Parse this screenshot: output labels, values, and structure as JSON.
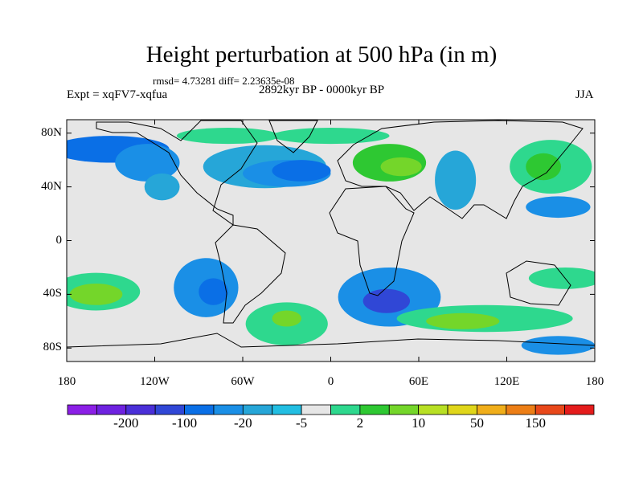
{
  "title": "Height perturbation at 500 hPa (in m)",
  "stats": "rmsd= 4.73281 diff= 2.23635e-08",
  "experiment": "Expt = xqFV7-xqfua",
  "period": "2892kyr BP - 0000kyr BP",
  "season": "JJA",
  "map": {
    "lat_range": [
      -90,
      90
    ],
    "lon_range": [
      -180,
      180
    ],
    "lat_ticks": [
      {
        "value": 80,
        "label": "80N"
      },
      {
        "value": 40,
        "label": "40N"
      },
      {
        "value": 0,
        "label": "0"
      },
      {
        "value": -40,
        "label": "40S"
      },
      {
        "value": -80,
        "label": "80S"
      }
    ],
    "lon_ticks": [
      {
        "value": -180,
        "label": "180"
      },
      {
        "value": -120,
        "label": "120W"
      },
      {
        "value": -60,
        "label": "60W"
      },
      {
        "value": 0,
        "label": "0"
      },
      {
        "value": 60,
        "label": "60E"
      },
      {
        "value": 120,
        "label": "120E"
      },
      {
        "value": 180,
        "label": "180"
      }
    ],
    "anomaly_regions": [
      {
        "lon": -150,
        "lat": 68,
        "rlon": 40,
        "rlat": 10,
        "level": 4
      },
      {
        "lon": -125,
        "lat": 58,
        "rlon": 22,
        "rlat": 14,
        "level": 5
      },
      {
        "lon": -115,
        "lat": 40,
        "rlon": 12,
        "rlat": 10,
        "level": 6
      },
      {
        "lon": -45,
        "lat": 55,
        "rlon": 42,
        "rlat": 16,
        "level": 6
      },
      {
        "lon": -30,
        "lat": 50,
        "rlon": 30,
        "rlat": 10,
        "level": 5
      },
      {
        "lon": -20,
        "lat": 52,
        "rlon": 20,
        "rlat": 8,
        "level": 4
      },
      {
        "lon": -70,
        "lat": 78,
        "rlon": 35,
        "rlat": 6,
        "level": 9
      },
      {
        "lon": 40,
        "lat": 58,
        "rlon": 25,
        "rlat": 14,
        "level": 10
      },
      {
        "lon": 48,
        "lat": 55,
        "rlon": 14,
        "rlat": 7,
        "level": 11
      },
      {
        "lon": 0,
        "lat": 78,
        "rlon": 40,
        "rlat": 6,
        "level": 9
      },
      {
        "lon": 85,
        "lat": 45,
        "rlon": 14,
        "rlat": 22,
        "level": 6
      },
      {
        "lon": 150,
        "lat": 55,
        "rlon": 28,
        "rlat": 20,
        "level": 9
      },
      {
        "lon": 145,
        "lat": 55,
        "rlon": 12,
        "rlat": 10,
        "level": 10
      },
      {
        "lon": 155,
        "lat": 25,
        "rlon": 22,
        "rlat": 8,
        "level": 5
      },
      {
        "lon": -160,
        "lat": -38,
        "rlon": 30,
        "rlat": 14,
        "level": 9
      },
      {
        "lon": -160,
        "lat": -40,
        "rlon": 18,
        "rlat": 8,
        "level": 11
      },
      {
        "lon": -85,
        "lat": -35,
        "rlon": 22,
        "rlat": 22,
        "level": 5
      },
      {
        "lon": -80,
        "lat": -38,
        "rlon": 10,
        "rlat": 10,
        "level": 4
      },
      {
        "lon": -30,
        "lat": -62,
        "rlon": 28,
        "rlat": 16,
        "level": 9
      },
      {
        "lon": -30,
        "lat": -58,
        "rlon": 10,
        "rlat": 6,
        "level": 11
      },
      {
        "lon": 40,
        "lat": -42,
        "rlon": 35,
        "rlat": 22,
        "level": 5
      },
      {
        "lon": 38,
        "lat": -45,
        "rlon": 16,
        "rlat": 9,
        "level": 3
      },
      {
        "lon": 105,
        "lat": -58,
        "rlon": 60,
        "rlat": 10,
        "level": 9
      },
      {
        "lon": 90,
        "lat": -60,
        "rlon": 25,
        "rlat": 6,
        "level": 11
      },
      {
        "lon": 160,
        "lat": -28,
        "rlon": 25,
        "rlat": 8,
        "level": 9
      },
      {
        "lon": 155,
        "lat": -78,
        "rlon": 25,
        "rlat": 7,
        "level": 5
      }
    ]
  },
  "colorbar": {
    "colors": [
      "#8b1fe6",
      "#6e22e0",
      "#4a2fd8",
      "#3047d6",
      "#0a6fe6",
      "#1a8fe6",
      "#26a6d8",
      "#22bee2",
      "#e6e6e6",
      "#2ed88e",
      "#2ec832",
      "#74d62a",
      "#b8e024",
      "#e0d61a",
      "#f0ae1a",
      "#ec7e16",
      "#e8481a",
      "#e41c1c"
    ],
    "labels": [
      "-200",
      "-100",
      "-20",
      "-5",
      "2",
      "10",
      "50",
      "150"
    ]
  }
}
